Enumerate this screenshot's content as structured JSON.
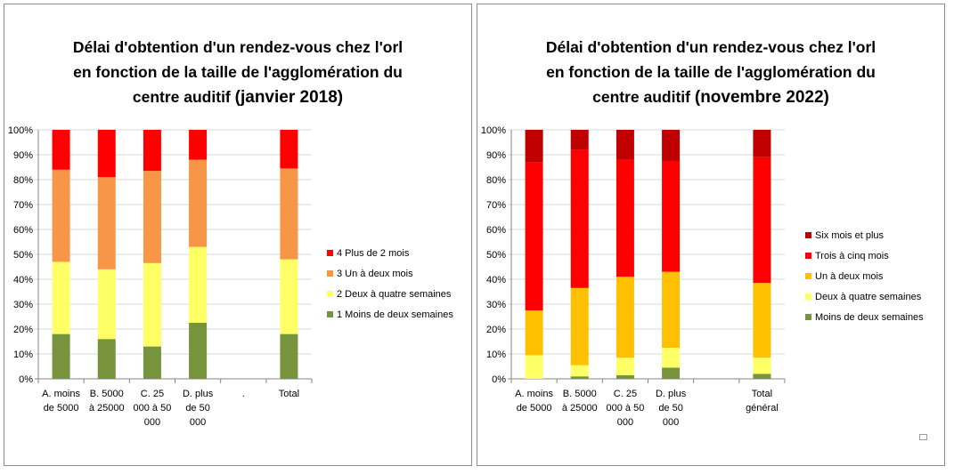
{
  "charts": [
    {
      "id": "left",
      "title": "Délai d'obtention  d'un rendez-vous chez l'orl en fonction de la taille de l'agglomération  du centre auditif",
      "title_lines": [
        "Délai d'obtention  d'un rendez-vous chez l'orl",
        "en fonction de la taille de l'agglomération  du",
        "centre auditif"
      ],
      "title_date": "(janvier 2018)",
      "legend": [
        "4 Plus de 2 mois",
        "3 Un à deux mois",
        "2 Deux à quatre semaines",
        "1 Moins de deux semaines"
      ]
    },
    {
      "id": "right",
      "title": "Délai d'obtention  d'un rendez-vous chez l'orl en fonction de la taille de l'agglomération  du centre auditif",
      "title_lines": [
        "Délai d'obtention  d'un rendez-vous chez l'orl",
        "en fonction de la taille de l'agglomération  du",
        "centre auditif"
      ],
      "title_date": "(novembre 2022)",
      "legend": [
        "Six mois et plus",
        "Trois à cinq mois",
        "Un à deux mois",
        "Deux à quatre semaines",
        "Moins de deux semaines"
      ]
    }
  ],
  "chart_data": [
    {
      "type": "bar",
      "stacked": true,
      "title": "Délai d'obtention  d'un rendez-vous chez l'orl en fonction de la taille de l'agglomération  du centre auditif (janvier 2018)",
      "categories": [
        [
          "A. moins",
          "de 5000"
        ],
        [
          "B. 5000",
          "à 25000"
        ],
        [
          "C. 25",
          "000 à 50",
          "000"
        ],
        [
          "D. plus",
          "de 50",
          "000"
        ],
        [
          "."
        ],
        [
          "Total"
        ]
      ],
      "ylim": [
        0,
        100
      ],
      "yticks": [
        "0%",
        "10%",
        "20%",
        "30%",
        "40%",
        "50%",
        "60%",
        "70%",
        "80%",
        "90%",
        "100%"
      ],
      "legend_position": "right",
      "series": [
        {
          "name": "1 Moins de deux semaines",
          "color": "#77933c",
          "values": [
            18,
            16,
            13,
            22.5,
            0,
            18
          ]
        },
        {
          "name": "2 Deux à quatre semaines",
          "color": "#ffff66",
          "values": [
            29,
            28,
            33.5,
            30.5,
            0,
            30
          ]
        },
        {
          "name": "3 Un à deux mois",
          "color": "#f79646",
          "values": [
            37,
            37,
            37,
            35,
            0,
            36.5
          ]
        },
        {
          "name": "4 Plus de 2 mois",
          "color": "#ff0000",
          "values": [
            16,
            19,
            16.5,
            12,
            0,
            15.5
          ]
        }
      ]
    },
    {
      "type": "bar",
      "stacked": true,
      "title": "Délai d'obtention  d'un rendez-vous chez l'orl en fonction de la taille de l'agglomération  du centre auditif (novembre 2022)",
      "categories": [
        [
          "A. moins",
          "de 5000"
        ],
        [
          "B. 5000",
          "à 25000"
        ],
        [
          "C. 25",
          "000 à 50",
          "000"
        ],
        [
          "D. plus",
          "de 50",
          "000"
        ],
        [
          ""
        ],
        [
          "Total",
          "général"
        ]
      ],
      "ylim": [
        0,
        100
      ],
      "yticks": [
        "0%",
        "10%",
        "20%",
        "30%",
        "40%",
        "50%",
        "60%",
        "70%",
        "80%",
        "90%",
        "100%"
      ],
      "legend_position": "right",
      "series": [
        {
          "name": "Moins de deux semaines",
          "color": "#77933c",
          "values": [
            0,
            1,
            1.5,
            4.5,
            0,
            2
          ]
        },
        {
          "name": "Deux à quatre semaines",
          "color": "#ffff66",
          "values": [
            9.5,
            4.5,
            7,
            8,
            0,
            6.5
          ]
        },
        {
          "name": "Un à deux mois",
          "color": "#ffc000",
          "values": [
            18,
            31,
            32.5,
            30.5,
            0,
            30
          ]
        },
        {
          "name": "Trois à cinq mois",
          "color": "#ff0000",
          "values": [
            59.5,
            55.5,
            47,
            44.5,
            0,
            50.5
          ]
        },
        {
          "name": "Six mois et plus",
          "color": "#c00000",
          "values": [
            13,
            8,
            12,
            12.5,
            0,
            11
          ]
        }
      ]
    }
  ]
}
